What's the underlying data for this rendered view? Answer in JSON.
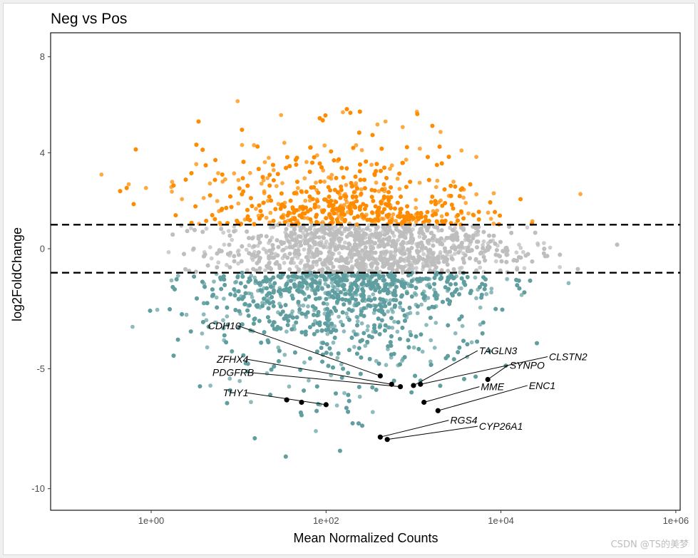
{
  "chart_data": {
    "type": "scatter",
    "title": "Neg vs Pos",
    "xlabel": "Mean Normalized Counts",
    "ylabel": "log2FoldChange",
    "x_scale": "log10",
    "xlim_log10": [
      -1.15,
      6.05
    ],
    "ylim": [
      -10.9,
      9.0
    ],
    "x_ticks": [
      {
        "value": 0,
        "label": "1e+00"
      },
      {
        "value": 2,
        "label": "1e+02"
      },
      {
        "value": 4,
        "label": "1e+04"
      },
      {
        "value": 6,
        "label": "1e+06"
      }
    ],
    "y_ticks": [
      {
        "value": 8,
        "label": "8"
      },
      {
        "value": 4,
        "label": "4"
      },
      {
        "value": 0,
        "label": "0"
      },
      {
        "value": -5,
        "label": "-5"
      },
      {
        "value": -10,
        "label": "-10"
      }
    ],
    "thresholds": [
      1,
      -1
    ],
    "grid": false,
    "legend": "none",
    "colors": {
      "up": "#ff8c00",
      "down": "#5f9ea0",
      "ns": "#bebebe",
      "highlight": "#000000",
      "line": "#000000"
    },
    "highlighted_genes": [
      {
        "gene": "CDH10",
        "log10_count": 2.62,
        "log2fc": -5.3
      },
      {
        "gene": "ZFHX4",
        "log10_count": 2.75,
        "log2fc": -5.65
      },
      {
        "gene": "PDGFRB",
        "log10_count": 2.85,
        "log2fc": -5.75
      },
      {
        "gene": "THY1",
        "log10_count": 1.55,
        "log2fc": -6.3
      },
      {
        "gene": "THY1",
        "log10_count": 1.72,
        "log2fc": -6.4
      },
      {
        "gene": "THY1",
        "log10_count": 2.0,
        "log2fc": -6.5
      },
      {
        "gene": "TAGLN3",
        "log10_count": 3.0,
        "log2fc": -5.7
      },
      {
        "gene": "CLSTN2",
        "log10_count": 3.08,
        "log2fc": -5.65
      },
      {
        "gene": "SYNPO",
        "log10_count": 3.85,
        "log2fc": -5.45
      },
      {
        "gene": "MME",
        "log10_count": 3.12,
        "log2fc": -6.4
      },
      {
        "gene": "ENC1",
        "log10_count": 3.28,
        "log2fc": -6.75
      },
      {
        "gene": "RGS4",
        "log10_count": 2.62,
        "log2fc": -7.85
      },
      {
        "gene": "CYP26A1",
        "log10_count": 2.7,
        "log2fc": -7.95
      }
    ],
    "labels": [
      {
        "text": "CDH10",
        "log10_count": 0.65,
        "log2fc": -3.2,
        "anchor": "start"
      },
      {
        "text": "ZFHX4",
        "log10_count": 0.75,
        "log2fc": -4.6,
        "anchor": "start"
      },
      {
        "text": "PDGFRB",
        "log10_count": 0.7,
        "log2fc": -5.15,
        "anchor": "start"
      },
      {
        "text": "THY1",
        "log10_count": 0.82,
        "log2fc": -6.0,
        "anchor": "start"
      },
      {
        "text": "TAGLN3",
        "log10_count": 3.75,
        "log2fc": -4.25,
        "anchor": "start"
      },
      {
        "text": "CLSTN2",
        "log10_count": 4.55,
        "log2fc": -4.5,
        "anchor": "start"
      },
      {
        "text": "SYNPO",
        "log10_count": 4.1,
        "log2fc": -4.85,
        "anchor": "start"
      },
      {
        "text": "MME",
        "log10_count": 3.77,
        "log2fc": -5.75,
        "anchor": "start"
      },
      {
        "text": "ENC1",
        "log10_count": 4.32,
        "log2fc": -5.7,
        "anchor": "start"
      },
      {
        "text": "RGS4",
        "log10_count": 3.42,
        "log2fc": -7.15,
        "anchor": "start"
      },
      {
        "text": "CYP26A1",
        "log10_count": 3.75,
        "log2fc": -7.4,
        "anchor": "start"
      }
    ],
    "label_connectors": [
      {
        "from_gene": "CDH10",
        "to_index": 0
      },
      {
        "from_gene": "ZFHX4",
        "to_index": 1
      },
      {
        "from_gene": "PDGFRB",
        "to_index": 2
      },
      {
        "from_gene": "THY1",
        "to_index": 5
      },
      {
        "from_gene": "TAGLN3",
        "to_index": 6
      },
      {
        "from_gene": "CLSTN2",
        "to_index": 7
      },
      {
        "from_gene": "SYNPO",
        "to_index": 8
      },
      {
        "from_gene": "MME",
        "to_index": 9
      },
      {
        "from_gene": "ENC1",
        "to_index": 10
      },
      {
        "from_gene": "RGS4",
        "to_index": 11
      },
      {
        "from_gene": "CYP26A1",
        "to_index": 12
      }
    ]
  },
  "watermark": "CSDN @TS的美梦"
}
